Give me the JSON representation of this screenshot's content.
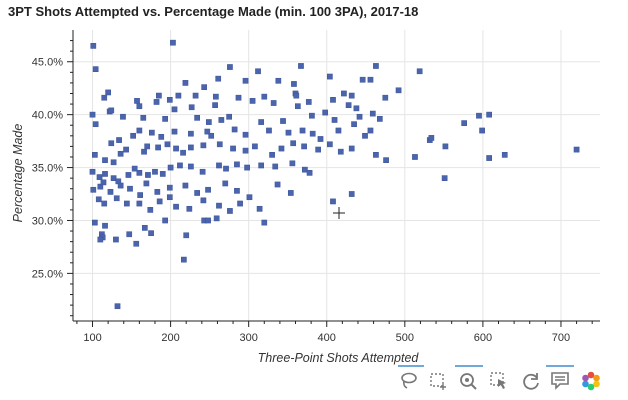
{
  "chart_data": {
    "type": "scatter",
    "title": "3PT Shots Attempted vs. Percentage Made (min. 100 3PA), 2017-18",
    "xlabel": "Three-Point Shots Attempted",
    "ylabel": "Percentage Made",
    "xlim": [
      75,
      750
    ],
    "ylim": [
      0.205,
      0.48
    ],
    "xticks": [
      100,
      200,
      300,
      400,
      500,
      600,
      700
    ],
    "xtick_labels": [
      "100",
      "200",
      "300",
      "400",
      "500",
      "600",
      "700"
    ],
    "yticks": [
      0.25,
      0.3,
      0.35,
      0.4,
      0.45
    ],
    "ytick_labels": [
      "25.0%",
      "30.0%",
      "35.0%",
      "40.0%",
      "45.0%"
    ],
    "grid": true,
    "color": "#4a64ad",
    "points": [
      [
        101,
        0.465
      ],
      [
        203,
        0.468
      ],
      [
        104,
        0.443
      ],
      [
        261,
        0.434
      ],
      [
        312,
        0.441
      ],
      [
        276,
        0.445
      ],
      [
        367,
        0.446
      ],
      [
        463,
        0.446
      ],
      [
        519,
        0.441
      ],
      [
        404,
        0.436
      ],
      [
        120,
        0.421
      ],
      [
        185,
        0.418
      ],
      [
        210,
        0.418
      ],
      [
        243,
        0.426
      ],
      [
        219,
        0.43
      ],
      [
        296,
        0.432
      ],
      [
        338,
        0.432
      ],
      [
        446,
        0.433
      ],
      [
        456,
        0.433
      ],
      [
        358,
        0.429
      ],
      [
        492,
        0.423
      ],
      [
        115,
        0.416
      ],
      [
        157,
        0.413
      ],
      [
        199,
        0.414
      ],
      [
        232,
        0.418
      ],
      [
        258,
        0.417
      ],
      [
        287,
        0.416
      ],
      [
        320,
        0.417
      ],
      [
        360,
        0.42
      ],
      [
        361,
        0.418
      ],
      [
        422,
        0.42
      ],
      [
        432,
        0.418
      ],
      [
        475,
        0.416
      ],
      [
        408,
        0.414
      ],
      [
        100,
        0.4
      ],
      [
        122,
        0.403
      ],
      [
        124,
        0.404
      ],
      [
        160,
        0.408
      ],
      [
        182,
        0.412
      ],
      [
        205,
        0.405
      ],
      [
        227,
        0.407
      ],
      [
        257,
        0.409
      ],
      [
        305,
        0.413
      ],
      [
        332,
        0.411
      ],
      [
        363,
        0.408
      ],
      [
        377,
        0.412
      ],
      [
        428,
        0.409
      ],
      [
        438,
        0.406
      ],
      [
        576,
        0.392
      ],
      [
        595,
        0.399
      ],
      [
        608,
        0.4
      ],
      [
        104,
        0.391
      ],
      [
        139,
        0.398
      ],
      [
        165,
        0.397
      ],
      [
        193,
        0.396
      ],
      [
        234,
        0.397
      ],
      [
        249,
        0.393
      ],
      [
        265,
        0.395
      ],
      [
        275,
        0.398
      ],
      [
        316,
        0.393
      ],
      [
        344,
        0.394
      ],
      [
        381,
        0.399
      ],
      [
        398,
        0.402
      ],
      [
        410,
        0.395
      ],
      [
        435,
        0.391
      ],
      [
        442,
        0.398
      ],
      [
        459,
        0.401
      ],
      [
        468,
        0.396
      ],
      [
        124,
        0.373
      ],
      [
        134,
        0.376
      ],
      [
        152,
        0.38
      ],
      [
        160,
        0.385
      ],
      [
        176,
        0.383
      ],
      [
        188,
        0.379
      ],
      [
        205,
        0.384
      ],
      [
        226,
        0.382
      ],
      [
        247,
        0.384
      ],
      [
        252,
        0.38
      ],
      [
        282,
        0.386
      ],
      [
        296,
        0.381
      ],
      [
        326,
        0.385
      ],
      [
        351,
        0.383
      ],
      [
        369,
        0.385
      ],
      [
        382,
        0.382
      ],
      [
        392,
        0.377
      ],
      [
        415,
        0.385
      ],
      [
        449,
        0.38
      ],
      [
        456,
        0.385
      ],
      [
        532,
        0.376
      ],
      [
        534,
        0.378
      ],
      [
        552,
        0.37
      ],
      [
        599,
        0.385
      ],
      [
        103,
        0.362
      ],
      [
        116,
        0.357
      ],
      [
        127,
        0.355
      ],
      [
        136,
        0.363
      ],
      [
        143,
        0.367
      ],
      [
        166,
        0.365
      ],
      [
        170,
        0.37
      ],
      [
        184,
        0.369
      ],
      [
        196,
        0.372
      ],
      [
        207,
        0.368
      ],
      [
        216,
        0.364
      ],
      [
        226,
        0.369
      ],
      [
        242,
        0.371
      ],
      [
        263,
        0.372
      ],
      [
        280,
        0.368
      ],
      [
        296,
        0.366
      ],
      [
        308,
        0.37
      ],
      [
        330,
        0.362
      ],
      [
        342,
        0.368
      ],
      [
        357,
        0.373
      ],
      [
        371,
        0.37
      ],
      [
        389,
        0.367
      ],
      [
        404,
        0.372
      ],
      [
        418,
        0.365
      ],
      [
        432,
        0.368
      ],
      [
        463,
        0.362
      ],
      [
        476,
        0.357
      ],
      [
        513,
        0.36
      ],
      [
        608,
        0.359
      ],
      [
        628,
        0.362
      ],
      [
        720,
        0.367
      ],
      [
        100,
        0.346
      ],
      [
        109,
        0.341
      ],
      [
        116,
        0.344
      ],
      [
        127,
        0.34
      ],
      [
        133,
        0.337
      ],
      [
        146,
        0.343
      ],
      [
        154,
        0.349
      ],
      [
        160,
        0.345
      ],
      [
        171,
        0.343
      ],
      [
        180,
        0.346
      ],
      [
        190,
        0.344
      ],
      [
        200,
        0.35
      ],
      [
        212,
        0.352
      ],
      [
        226,
        0.351
      ],
      [
        241,
        0.346
      ],
      [
        262,
        0.352
      ],
      [
        271,
        0.349
      ],
      [
        285,
        0.353
      ],
      [
        298,
        0.35
      ],
      [
        316,
        0.352
      ],
      [
        334,
        0.351
      ],
      [
        356,
        0.354
      ],
      [
        372,
        0.348
      ],
      [
        378,
        0.345
      ],
      [
        551,
        0.34
      ],
      [
        101,
        0.329
      ],
      [
        110,
        0.332
      ],
      [
        114,
        0.336
      ],
      [
        123,
        0.327
      ],
      [
        136,
        0.333
      ],
      [
        148,
        0.33
      ],
      [
        161,
        0.324
      ],
      [
        169,
        0.335
      ],
      [
        183,
        0.327
      ],
      [
        199,
        0.331
      ],
      [
        219,
        0.333
      ],
      [
        234,
        0.326
      ],
      [
        248,
        0.329
      ],
      [
        270,
        0.335
      ],
      [
        285,
        0.328
      ],
      [
        301,
        0.322
      ],
      [
        337,
        0.334
      ],
      [
        354,
        0.326
      ],
      [
        432,
        0.325
      ],
      [
        108,
        0.32
      ],
      [
        115,
        0.316
      ],
      [
        131,
        0.321
      ],
      [
        144,
        0.316
      ],
      [
        160,
        0.316
      ],
      [
        174,
        0.31
      ],
      [
        186,
        0.318
      ],
      [
        199,
        0.322
      ],
      [
        207,
        0.313
      ],
      [
        224,
        0.311
      ],
      [
        242,
        0.319
      ],
      [
        262,
        0.314
      ],
      [
        276,
        0.309
      ],
      [
        289,
        0.316
      ],
      [
        314,
        0.311
      ],
      [
        408,
        0.318
      ],
      [
        103,
        0.298
      ],
      [
        112,
        0.287
      ],
      [
        116,
        0.295
      ],
      [
        147,
        0.287
      ],
      [
        167,
        0.293
      ],
      [
        175,
        0.288
      ],
      [
        193,
        0.3
      ],
      [
        220,
        0.286
      ],
      [
        243,
        0.3
      ],
      [
        248,
        0.3
      ],
      [
        259,
        0.302
      ],
      [
        320,
        0.298
      ],
      [
        113,
        0.284
      ],
      [
        110,
        0.282
      ],
      [
        130,
        0.282
      ],
      [
        156,
        0.278
      ],
      [
        217,
        0.263
      ],
      [
        132,
        0.219
      ]
    ]
  }
}
